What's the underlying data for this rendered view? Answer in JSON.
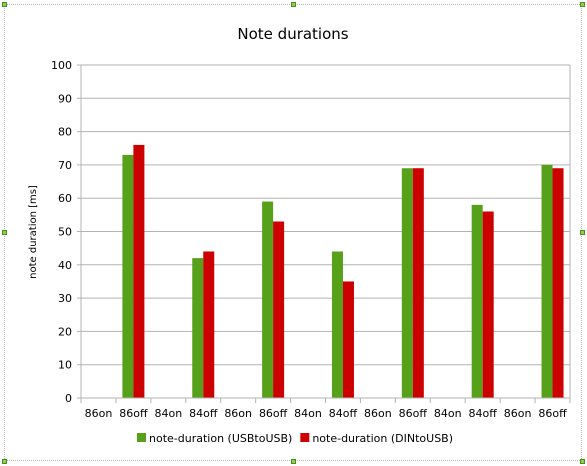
{
  "chart_data": {
    "type": "bar",
    "title": "Note durations",
    "xlabel": "",
    "ylabel": "note duration [ms]",
    "ylim": [
      0,
      100
    ],
    "ytick_step": 10,
    "grid": true,
    "legend_position": "bottom",
    "categories": [
      "86on",
      "86off",
      "84on",
      "84off",
      "86on",
      "86off",
      "84on",
      "84off",
      "86on",
      "86off",
      "84on",
      "84off",
      "86on",
      "86off"
    ],
    "series": [
      {
        "name": "note-duration (USBtoUSB)",
        "color": "#57a01a",
        "values": [
          null,
          73,
          null,
          42,
          null,
          59,
          null,
          44,
          null,
          69,
          null,
          58,
          null,
          70
        ]
      },
      {
        "name": "note-duration (DINtoUSB)",
        "color": "#cc0000",
        "values": [
          null,
          76,
          null,
          44,
          null,
          53,
          null,
          35,
          null,
          69,
          null,
          56,
          null,
          69
        ]
      }
    ]
  }
}
